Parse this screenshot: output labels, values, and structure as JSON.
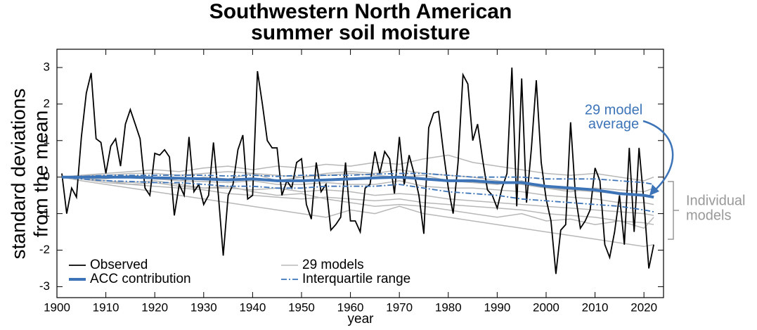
{
  "chart_data": {
    "type": "line",
    "title": [
      "Southwestern North American",
      "summer soil moisture"
    ],
    "ylabel": [
      "standard deviations",
      "from the mean"
    ],
    "xlabel": "year",
    "xlim": [
      1900,
      2024
    ],
    "ylim": [
      -3.3,
      3.5
    ],
    "xticks": [
      1900,
      1910,
      1920,
      1930,
      1940,
      1950,
      1960,
      1970,
      1980,
      1990,
      2000,
      2010,
      2020
    ],
    "yticks": [
      -3,
      -2,
      -1,
      0,
      1,
      2,
      3
    ],
    "observed": {
      "name": "Observed",
      "color": "#000000",
      "x": [
        1901,
        1902,
        1903,
        1904,
        1905,
        1906,
        1907,
        1908,
        1909,
        1910,
        1911,
        1912,
        1913,
        1914,
        1915,
        1916,
        1917,
        1918,
        1919,
        1920,
        1921,
        1922,
        1923,
        1924,
        1925,
        1926,
        1927,
        1928,
        1929,
        1930,
        1931,
        1932,
        1933,
        1934,
        1935,
        1936,
        1937,
        1938,
        1939,
        1940,
        1941,
        1942,
        1943,
        1944,
        1945,
        1946,
        1947,
        1948,
        1949,
        1950,
        1951,
        1952,
        1953,
        1954,
        1955,
        1956,
        1957,
        1958,
        1959,
        1960,
        1961,
        1962,
        1963,
        1964,
        1965,
        1966,
        1967,
        1968,
        1969,
        1970,
        1971,
        1972,
        1973,
        1974,
        1975,
        1976,
        1977,
        1978,
        1979,
        1980,
        1981,
        1982,
        1983,
        1984,
        1985,
        1986,
        1987,
        1988,
        1989,
        1990,
        1991,
        1992,
        1993,
        1994,
        1995,
        1996,
        1997,
        1998,
        1999,
        2000,
        2001,
        2002,
        2003,
        2004,
        2005,
        2006,
        2007,
        2008,
        2009,
        2010,
        2011,
        2012,
        2013,
        2014,
        2015,
        2016,
        2017,
        2018,
        2019,
        2020,
        2021,
        2022
      ],
      "values": [
        0.1,
        -1.0,
        -0.3,
        -0.55,
        1.1,
        2.3,
        2.85,
        1.05,
        0.95,
        0.1,
        0.85,
        1.05,
        0.3,
        1.45,
        1.85,
        1.45,
        1.05,
        -0.3,
        -0.5,
        0.65,
        0.6,
        0.75,
        0.55,
        -1.05,
        -0.2,
        -0.5,
        1.1,
        -0.4,
        -0.2,
        -0.75,
        -0.5,
        0.95,
        -0.5,
        -2.15,
        -0.5,
        -0.2,
        0.75,
        1.15,
        -0.6,
        -0.5,
        2.9,
        2.0,
        1.0,
        0.8,
        0.8,
        -0.5,
        -0.1,
        -0.3,
        0.4,
        0.5,
        -0.75,
        -1.15,
        0.4,
        -0.4,
        -0.2,
        -1.45,
        -1.3,
        -1.1,
        0.4,
        -1.2,
        -1.2,
        -1.5,
        -0.3,
        -0.2,
        0.7,
        0.1,
        0.7,
        0.5,
        -0.45,
        1.1,
        -0.2,
        0.6,
        0.1,
        -0.5,
        -1.55,
        1.35,
        1.75,
        1.8,
        0.7,
        -0.3,
        -1.0,
        0.4,
        2.8,
        2.55,
        1.0,
        1.45,
        0.5,
        -0.35,
        -0.5,
        -0.85,
        -0.3,
        0.1,
        3.0,
        -0.8,
        2.7,
        -0.7,
        0.8,
        2.65,
        0.4,
        -0.6,
        -1.2,
        -2.65,
        -1.45,
        -1.3,
        1.5,
        -0.5,
        -1.4,
        -1.2,
        -0.9,
        0.25,
        -0.1,
        -1.85,
        -2.2,
        -1.5,
        -0.5,
        -1.85,
        0.8,
        -1.5,
        0.8,
        -0.7,
        -2.5,
        -1.85
      ]
    },
    "model_x": [
      1901,
      1905,
      1910,
      1915,
      1920,
      1925,
      1930,
      1935,
      1940,
      1945,
      1950,
      1955,
      1960,
      1965,
      1970,
      1975,
      1980,
      1985,
      1990,
      1995,
      2000,
      2005,
      2010,
      2015,
      2020,
      2022
    ],
    "models": {
      "name": "29 models",
      "color": "#b8b8b8",
      "series": [
        [
          0,
          0.05,
          0.1,
          0.15,
          0.2,
          0.15,
          0.25,
          0.3,
          0.2,
          0.3,
          0.25,
          0.35,
          0.3,
          0.4,
          0.35,
          0.5,
          0.6,
          0.4,
          0.3,
          0.2,
          0.1,
          0.05,
          0.1,
          0,
          -0.1,
          0
        ],
        [
          0,
          -0.1,
          -0.2,
          -0.3,
          -0.4,
          -0.5,
          -0.6,
          -0.7,
          -0.8,
          -0.9,
          -1.0,
          -1.1,
          -0.9,
          -1.0,
          -0.8,
          -1.0,
          -1.1,
          -1.2,
          -1.3,
          -1.4,
          -1.5,
          -1.6,
          -1.7,
          -1.8,
          -1.9,
          -1.85
        ],
        [
          0,
          0,
          -0.05,
          0.05,
          0,
          -0.1,
          0,
          -0.05,
          0.1,
          -0.1,
          0,
          0.1,
          0.15,
          0.1,
          0.2,
          0.1,
          0.05,
          0,
          -0.1,
          -0.2,
          -0.3,
          -0.35,
          -0.4,
          -0.45,
          -0.5,
          -0.55
        ],
        [
          0,
          -0.05,
          -0.15,
          -0.2,
          -0.25,
          -0.3,
          -0.35,
          -0.45,
          -0.5,
          -0.55,
          -0.6,
          -0.55,
          -0.6,
          -0.65,
          -0.6,
          -0.7,
          -0.75,
          -0.8,
          -0.85,
          -0.9,
          -1.0,
          -1.05,
          -1.1,
          -1.2,
          -1.25,
          -1.3
        ],
        [
          0,
          0.02,
          0,
          0.03,
          -0.05,
          -0.1,
          -0.12,
          -0.15,
          -0.1,
          -0.2,
          -0.2,
          -0.15,
          -0.2,
          -0.2,
          -0.1,
          -0.25,
          -0.3,
          -0.3,
          -0.35,
          -0.4,
          -0.5,
          -0.55,
          -0.6,
          -0.7,
          -0.7,
          -0.75
        ],
        [
          0,
          -0.05,
          -0.1,
          -0.15,
          -0.1,
          -0.2,
          -0.3,
          -0.25,
          -0.4,
          -0.5,
          -0.45,
          -0.6,
          -0.7,
          -0.8,
          -0.75,
          -0.8,
          -0.9,
          -1.0,
          -1.1,
          -1.0,
          -1.2,
          -1.15,
          -1.3,
          -1.2,
          -1.4,
          -1.1
        ],
        [
          0,
          0.05,
          0.05,
          0.1,
          0.1,
          0.05,
          0.1,
          0.15,
          0.1,
          0.05,
          0,
          0.05,
          0.1,
          0.05,
          0,
          0.05,
          -0.1,
          -0.15,
          -0.2,
          -0.1,
          -0.3,
          -0.4,
          -0.3,
          -0.35,
          -0.4,
          -0.3
        ],
        [
          0,
          0,
          -0.1,
          -0.2,
          -0.15,
          -0.25,
          -0.3,
          -0.3,
          -0.35,
          -0.3,
          -0.4,
          -0.35,
          -0.4,
          -0.5,
          -0.45,
          -0.5,
          -0.6,
          -0.65,
          -0.7,
          -0.75,
          -0.8,
          -0.85,
          -0.9,
          -0.95,
          -1.0,
          -1.05
        ]
      ]
    },
    "acc": {
      "name": "ACC contribution",
      "color": "#3d74b8",
      "values": [
        0,
        0,
        0,
        0,
        -0.02,
        -0.03,
        -0.05,
        -0.08,
        -0.05,
        -0.1,
        -0.1,
        -0.08,
        -0.05,
        -0.02,
        0,
        -0.05,
        -0.1,
        -0.1,
        -0.15,
        -0.15,
        -0.25,
        -0.3,
        -0.35,
        -0.45,
        -0.5,
        -0.55
      ]
    },
    "iqr": {
      "name": "Interquartile range",
      "color": "#3d74b8",
      "upper": [
        0,
        0.02,
        0.05,
        0.05,
        0.05,
        0.05,
        0.05,
        0.03,
        0.05,
        0.02,
        0.05,
        0.05,
        0.05,
        0.08,
        0.1,
        0.1,
        0.05,
        0,
        0,
        0,
        -0.05,
        -0.05,
        -0.05,
        -0.1,
        -0.15,
        -0.2
      ],
      "lower": [
        0,
        -0.05,
        -0.1,
        -0.12,
        -0.15,
        -0.15,
        -0.2,
        -0.25,
        -0.25,
        -0.3,
        -0.3,
        -0.25,
        -0.25,
        -0.25,
        -0.2,
        -0.3,
        -0.4,
        -0.45,
        -0.5,
        -0.6,
        -0.65,
        -0.7,
        -0.75,
        -0.8,
        -0.9,
        -0.95
      ]
    },
    "annotations": [
      {
        "text": [
          "29 model",
          "average"
        ],
        "color": "#3d74b8"
      },
      {
        "text": [
          "Individual",
          "models"
        ],
        "color": "#999999"
      }
    ]
  }
}
